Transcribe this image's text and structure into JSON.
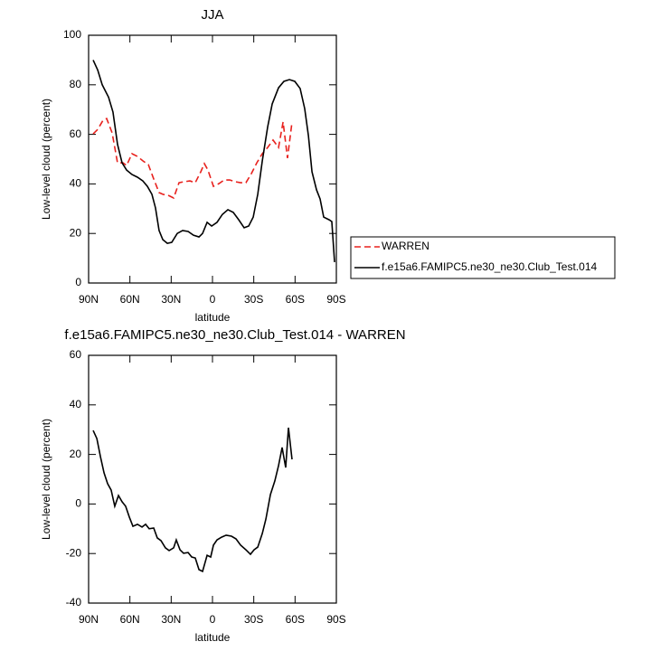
{
  "chart_data": [
    {
      "type": "line",
      "title": "JJA",
      "xlabel": "latitude",
      "ylabel": "Low-level cloud (percent)",
      "xlim": [
        90,
        -90
      ],
      "xticks": [
        {
          "value": 90,
          "label": "90N"
        },
        {
          "value": 60,
          "label": "60N"
        },
        {
          "value": 30,
          "label": "30N"
        },
        0,
        {
          "value": -30,
          "label": "30S"
        },
        {
          "value": -60,
          "label": "60S"
        },
        {
          "value": -90,
          "label": "90S"
        }
      ],
      "ylim": [
        0,
        100
      ],
      "yticks": [
        0,
        20,
        40,
        60,
        80,
        100
      ],
      "legend": "right",
      "series": [
        {
          "name": "WARREN",
          "color": "#e8211d",
          "line_style": "dashed",
          "x": [
            86.7,
            83.4,
            79.5,
            76.9,
            72.9,
            69,
            65,
            62.4,
            58.5,
            54.5,
            50.6,
            46.6,
            42.7,
            38.8,
            36.1,
            32.2,
            28.2,
            24.3,
            20.4,
            16.4,
            12.5,
            8.5,
            5.9,
            3.3,
            -0.7,
            -4.6,
            -8.6,
            -12.5,
            -16.4,
            -20.4,
            -24.3,
            -28.3,
            -32.2,
            -36.2,
            -40.1,
            -44,
            -48,
            -51.3,
            -54.5,
            -57.8
          ],
          "values": [
            60.2,
            62,
            65.7,
            66.4,
            60.6,
            48.5,
            48.5,
            47.4,
            52.2,
            51.1,
            49.3,
            47.8,
            42,
            36.5,
            35.8,
            35.4,
            34.3,
            40.5,
            40.9,
            41.2,
            40.5,
            44.9,
            48.2,
            45.6,
            39,
            40.1,
            41.6,
            41.6,
            40.9,
            40.5,
            40.5,
            44.2,
            48.5,
            52.2,
            54.7,
            57.7,
            54.7,
            65,
            50.4,
            65
          ]
        },
        {
          "name": "f.e15a6.FAMIPC5.ne30_ne30.Club_Test.014",
          "color": "#000000",
          "line_style": "solid",
          "x": [
            86.7,
            83.4,
            80.1,
            75.5,
            72.3,
            69,
            65.7,
            62.4,
            58.5,
            54.5,
            50.6,
            47.3,
            44,
            41.4,
            38.8,
            36.1,
            32.8,
            29.6,
            25.6,
            21.7,
            17.7,
            13.8,
            9.8,
            7.2,
            3.9,
            0.6,
            -3.3,
            -7.2,
            -11.2,
            -15.1,
            -19.1,
            -23,
            -26.3,
            -29.6,
            -32.9,
            -36.2,
            -40.1,
            -43.4,
            -48,
            -51.9,
            -55.9,
            -59.8,
            -63.7,
            -67,
            -69.7,
            -72.3,
            -75.6,
            -78.2,
            -80.8,
            -84.8,
            -86.7,
            -88.7
          ],
          "values": [
            90,
            86,
            80,
            75,
            69,
            56,
            48.5,
            45.6,
            43.8,
            42.7,
            41.2,
            39,
            35.8,
            30.3,
            21.2,
            17.5,
            16,
            16.4,
            20,
            21.2,
            20.8,
            19.3,
            18.6,
            20,
            24.5,
            23,
            24.5,
            27.7,
            29.6,
            28.5,
            25.5,
            22.3,
            23,
            26.6,
            35.8,
            49.3,
            63,
            72.3,
            78.8,
            81.4,
            82.1,
            81.4,
            78.5,
            70.4,
            59.5,
            44.9,
            37.6,
            33.9,
            26.6,
            25.5,
            24.8,
            8.4
          ]
        }
      ]
    },
    {
      "type": "line",
      "title": "f.e15a6.FAMIPC5.ne30_ne30.Club_Test.014 - WARREN",
      "xlabel": "latitude",
      "ylabel": "Low-level cloud (percent)",
      "xlim": [
        90,
        -90
      ],
      "xticks": [
        {
          "value": 90,
          "label": "90N"
        },
        {
          "value": 60,
          "label": "60N"
        },
        {
          "value": 30,
          "label": "30N"
        },
        0,
        {
          "value": -30,
          "label": "30S"
        },
        {
          "value": -60,
          "label": "60S"
        },
        {
          "value": -90,
          "label": "90S"
        }
      ],
      "ylim": [
        -40,
        60
      ],
      "yticks": [
        -40,
        -20,
        0,
        20,
        40,
        60
      ],
      "series": [
        {
          "color": "#000000",
          "line_style": "solid",
          "x": [
            86.7,
            84,
            81.4,
            78.8,
            76.2,
            73.6,
            71,
            68.3,
            65.7,
            63.1,
            60.4,
            57.8,
            54.5,
            51.2,
            48.6,
            46,
            42.7,
            40.1,
            37.4,
            34.2,
            31.5,
            28.2,
            26.3,
            23.6,
            21,
            17.7,
            15.1,
            12.5,
            9.8,
            7.2,
            3.9,
            1.3,
            -0.7,
            -3.3,
            -6.6,
            -9.9,
            -13.8,
            -17.1,
            -20.4,
            -24.3,
            -27.6,
            -30.2,
            -32.9,
            -36.2,
            -38.8,
            -42.1,
            -45.3,
            -48,
            -50.6,
            -53.2,
            -55.2,
            -57.8
          ],
          "values": [
            29.7,
            26.4,
            19.1,
            12.6,
            8.2,
            5.6,
            -0.9,
            3.4,
            0.9,
            -0.9,
            -5.3,
            -9,
            -8.2,
            -9.3,
            -8.2,
            -10,
            -9.7,
            -13.7,
            -14.8,
            -17.7,
            -18.8,
            -17.7,
            -14.5,
            -18.5,
            -19.9,
            -19.6,
            -21.4,
            -21.8,
            -26.5,
            -27.2,
            -20.7,
            -21.4,
            -16.6,
            -14.5,
            -13.4,
            -12.6,
            -13,
            -14.1,
            -16.6,
            -18.5,
            -20.3,
            -18.5,
            -17.4,
            -11.9,
            -6.1,
            3.8,
            9.3,
            15.5,
            22.8,
            14.7,
            30.8,
            18
          ]
        }
      ]
    }
  ]
}
